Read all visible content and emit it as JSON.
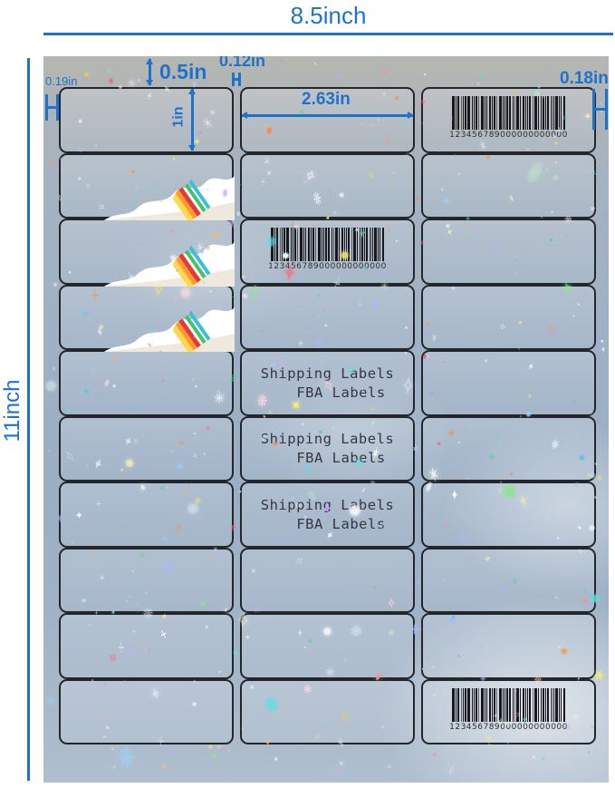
{
  "dimensions": {
    "accent_color": "#1e72cc",
    "width_label": "8.5inch",
    "height_label": "11inch",
    "top_margin_label": "0.5in",
    "left_margin_label": "0.19in",
    "gutter_label": "0.12in",
    "right_margin_label": "0.18in",
    "label_height_label": "1in",
    "label_width_label": "2.63in"
  },
  "sheet": {
    "grid": {
      "rows": 10,
      "columns": 3
    },
    "barcode": {
      "number": "123456789000000000000",
      "cells": [
        {
          "row": 1,
          "col": 3
        },
        {
          "row": 3,
          "col": 2
        },
        {
          "row": 10,
          "col": 3
        }
      ]
    },
    "peel_cells": [
      {
        "row": 2,
        "col": 1
      },
      {
        "row": 3,
        "col": 1
      },
      {
        "row": 4,
        "col": 1
      }
    ],
    "text_cells": {
      "line1": "Shipping Labels",
      "line2": "FBA Labels",
      "cells": [
        {
          "row": 5,
          "col": 2
        },
        {
          "row": 6,
          "col": 2
        },
        {
          "row": 7,
          "col": 2
        }
      ]
    }
  }
}
